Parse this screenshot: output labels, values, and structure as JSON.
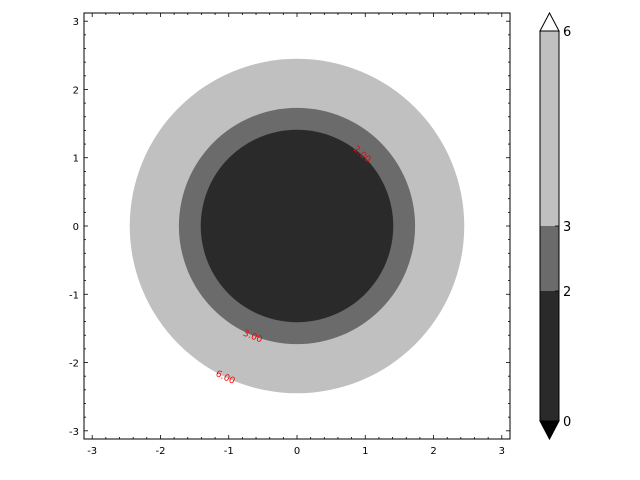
{
  "chart_data": {
    "type": "contour",
    "xlim": [
      -3.12,
      3.12
    ],
    "ylim": [
      -3.12,
      3.12
    ],
    "x_ticks": [
      "-3",
      "-2",
      "-1",
      "0",
      "1",
      "2",
      "3"
    ],
    "y_ticks": [
      "3",
      "2",
      "1",
      "0",
      "-1",
      "-2",
      "-3"
    ],
    "filled_regions": [
      {
        "min": 0,
        "max": 2,
        "radius": 1.41,
        "color": "#2a2a2a"
      },
      {
        "min": 2,
        "max": 3,
        "radius": 1.73,
        "color": "#6b6b6b"
      },
      {
        "min": 3,
        "max": 6,
        "radius": 2.45,
        "color": "#c0c0c0"
      }
    ],
    "contour_labels": [
      {
        "text": "2.00",
        "x": 0.95,
        "y": 1.05
      },
      {
        "text": "3.00",
        "x": -0.65,
        "y": -1.62
      },
      {
        "text": "6.00",
        "x": -1.05,
        "y": -2.22
      }
    ],
    "label_color": "#ff0000",
    "colorbar": {
      "ticks": [
        "6",
        "3",
        "2",
        "0"
      ],
      "extend": "both",
      "levels": [
        0,
        2,
        3,
        6
      ],
      "over_color": "#ffffff",
      "under_color": "#000000"
    }
  }
}
